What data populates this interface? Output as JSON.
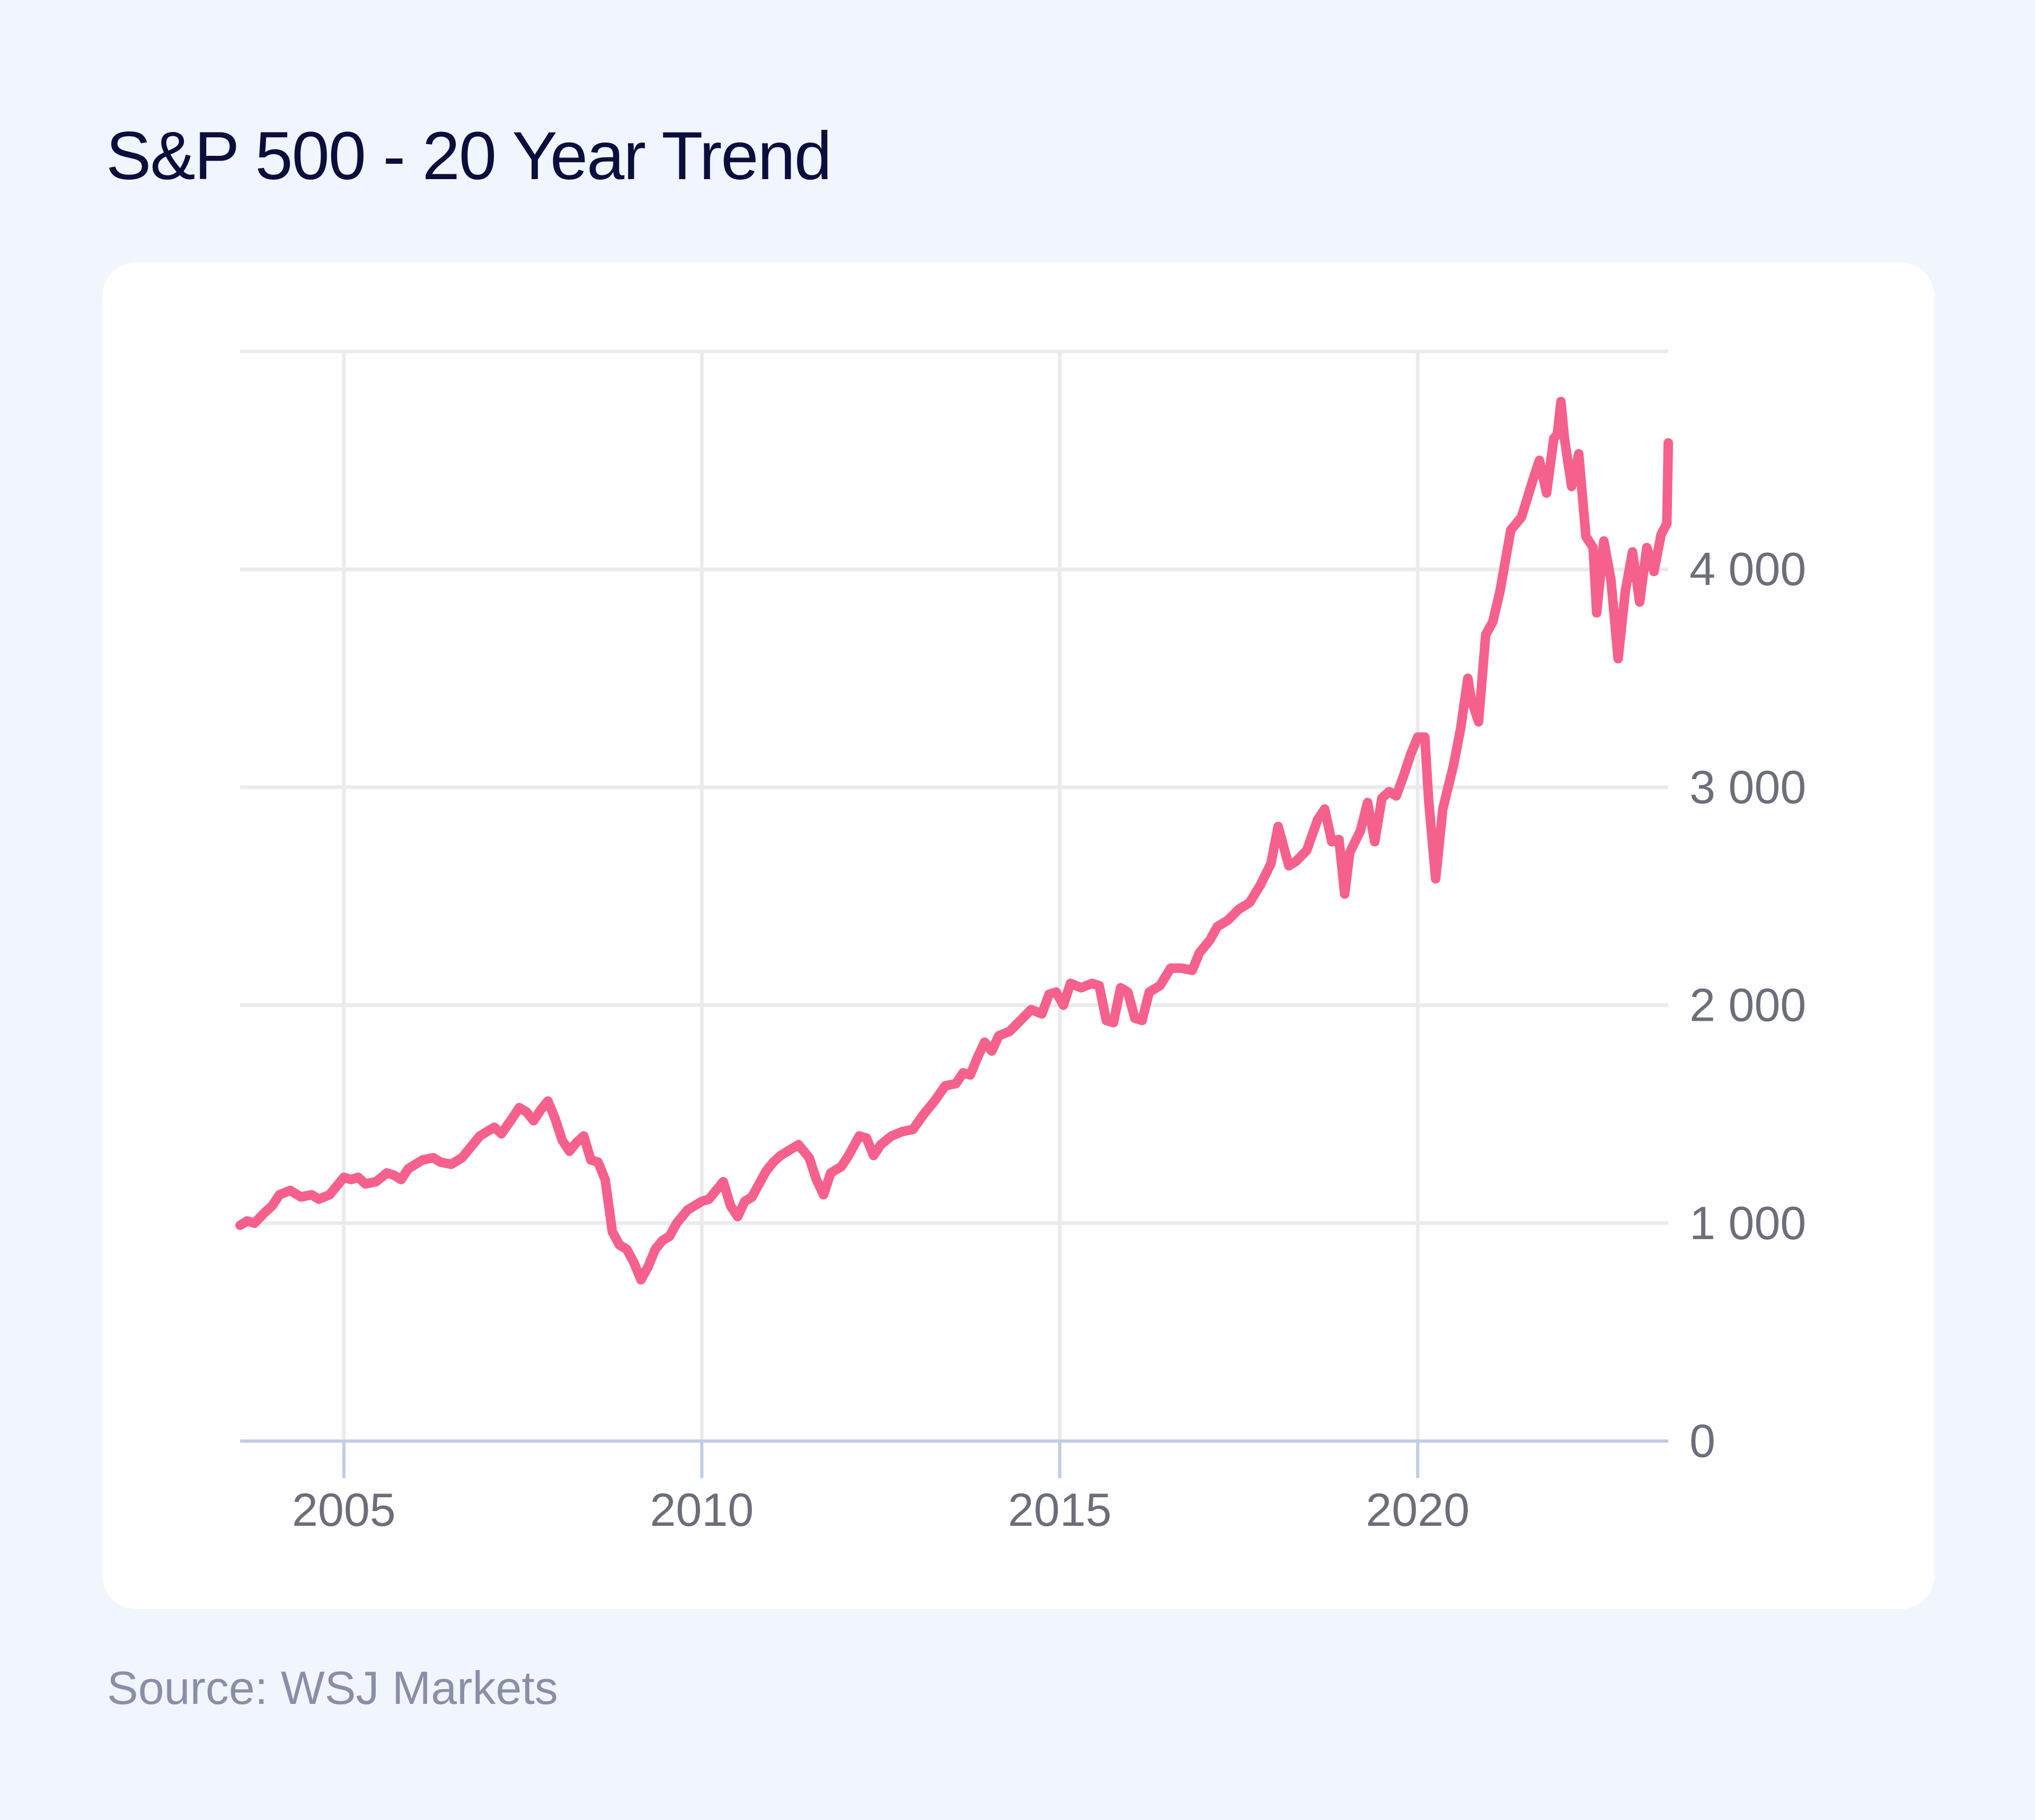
{
  "header": {
    "title": "S&P 500 - 20 Year Trend"
  },
  "footer": {
    "source": "Source: WSJ Markets"
  },
  "colors": {
    "page_background": "#f1f5fe",
    "card_background": "#ffffff",
    "line": "#f5618c",
    "gridline": "#ebebeb",
    "baseline": "#c0cde3",
    "title_text": "#0b0e3c",
    "source_text": "#8a8fa8",
    "tick_text": "#6c6e7a"
  },
  "chart_data": {
    "type": "line",
    "title": "S&P 500 - 20 Year Trend",
    "xlabel": "",
    "ylabel": "",
    "x_axis": {
      "type": "year",
      "range": [
        2003.55,
        2023.5
      ],
      "ticks": [
        2005,
        2010,
        2015,
        2020
      ],
      "tick_labels": [
        "2005",
        "2010",
        "2015",
        "2020"
      ]
    },
    "y_axis": {
      "position": "right",
      "range": [
        0,
        5000
      ],
      "ticks": [
        0,
        1000,
        2000,
        3000,
        4000
      ],
      "tick_labels": [
        "0",
        "1 000",
        "2 000",
        "3 000",
        "4 000"
      ]
    },
    "grid": {
      "horizontal": true,
      "vertical": true
    },
    "legend": "none",
    "series": [
      {
        "color": "#f5618c",
        "points": [
          [
            2003.55,
            990
          ],
          [
            2003.65,
            1010
          ],
          [
            2003.75,
            1000
          ],
          [
            2003.9,
            1050
          ],
          [
            2004.0,
            1080
          ],
          [
            2004.1,
            1130
          ],
          [
            2004.25,
            1150
          ],
          [
            2004.4,
            1120
          ],
          [
            2004.55,
            1130
          ],
          [
            2004.65,
            1110
          ],
          [
            2004.8,
            1130
          ],
          [
            2004.9,
            1170
          ],
          [
            2005.0,
            1210
          ],
          [
            2005.1,
            1200
          ],
          [
            2005.2,
            1210
          ],
          [
            2005.3,
            1180
          ],
          [
            2005.45,
            1190
          ],
          [
            2005.6,
            1230
          ],
          [
            2005.7,
            1220
          ],
          [
            2005.8,
            1200
          ],
          [
            2005.9,
            1250
          ],
          [
            2006.0,
            1270
          ],
          [
            2006.1,
            1290
          ],
          [
            2006.25,
            1300
          ],
          [
            2006.35,
            1280
          ],
          [
            2006.5,
            1270
          ],
          [
            2006.65,
            1300
          ],
          [
            2006.8,
            1360
          ],
          [
            2006.9,
            1400
          ],
          [
            2007.0,
            1420
          ],
          [
            2007.1,
            1440
          ],
          [
            2007.2,
            1410
          ],
          [
            2007.35,
            1480
          ],
          [
            2007.45,
            1530
          ],
          [
            2007.55,
            1510
          ],
          [
            2007.65,
            1470
          ],
          [
            2007.75,
            1520
          ],
          [
            2007.85,
            1560
          ],
          [
            2007.95,
            1480
          ],
          [
            2008.05,
            1380
          ],
          [
            2008.15,
            1330
          ],
          [
            2008.25,
            1370
          ],
          [
            2008.35,
            1400
          ],
          [
            2008.45,
            1290
          ],
          [
            2008.55,
            1280
          ],
          [
            2008.65,
            1200
          ],
          [
            2008.75,
            960
          ],
          [
            2008.85,
            900
          ],
          [
            2008.95,
            880
          ],
          [
            2009.05,
            820
          ],
          [
            2009.15,
            740
          ],
          [
            2009.25,
            800
          ],
          [
            2009.35,
            880
          ],
          [
            2009.45,
            920
          ],
          [
            2009.55,
            940
          ],
          [
            2009.65,
            1000
          ],
          [
            2009.8,
            1060
          ],
          [
            2009.9,
            1080
          ],
          [
            2010.0,
            1100
          ],
          [
            2010.1,
            1110
          ],
          [
            2010.2,
            1150
          ],
          [
            2010.3,
            1190
          ],
          [
            2010.4,
            1080
          ],
          [
            2010.5,
            1030
          ],
          [
            2010.6,
            1100
          ],
          [
            2010.7,
            1120
          ],
          [
            2010.8,
            1180
          ],
          [
            2010.9,
            1240
          ],
          [
            2011.0,
            1280
          ],
          [
            2011.1,
            1310
          ],
          [
            2011.2,
            1330
          ],
          [
            2011.35,
            1360
          ],
          [
            2011.5,
            1300
          ],
          [
            2011.6,
            1200
          ],
          [
            2011.7,
            1130
          ],
          [
            2011.8,
            1230
          ],
          [
            2011.95,
            1260
          ],
          [
            2012.05,
            1310
          ],
          [
            2012.2,
            1400
          ],
          [
            2012.3,
            1390
          ],
          [
            2012.4,
            1310
          ],
          [
            2012.5,
            1360
          ],
          [
            2012.65,
            1400
          ],
          [
            2012.8,
            1420
          ],
          [
            2012.95,
            1430
          ],
          [
            2013.1,
            1500
          ],
          [
            2013.25,
            1560
          ],
          [
            2013.4,
            1630
          ],
          [
            2013.55,
            1640
          ],
          [
            2013.65,
            1690
          ],
          [
            2013.75,
            1680
          ],
          [
            2013.85,
            1760
          ],
          [
            2013.95,
            1830
          ],
          [
            2014.05,
            1790
          ],
          [
            2014.15,
            1860
          ],
          [
            2014.3,
            1880
          ],
          [
            2014.45,
            1930
          ],
          [
            2014.6,
            1980
          ],
          [
            2014.75,
            1960
          ],
          [
            2014.85,
            2050
          ],
          [
            2014.95,
            2060
          ],
          [
            2015.05,
            2000
          ],
          [
            2015.15,
            2100
          ],
          [
            2015.3,
            2080
          ],
          [
            2015.45,
            2100
          ],
          [
            2015.55,
            2090
          ],
          [
            2015.65,
            1930
          ],
          [
            2015.75,
            1920
          ],
          [
            2015.85,
            2080
          ],
          [
            2015.95,
            2060
          ],
          [
            2016.05,
            1940
          ],
          [
            2016.15,
            1930
          ],
          [
            2016.25,
            2060
          ],
          [
            2016.4,
            2090
          ],
          [
            2016.55,
            2170
          ],
          [
            2016.7,
            2170
          ],
          [
            2016.85,
            2160
          ],
          [
            2016.95,
            2240
          ],
          [
            2017.1,
            2300
          ],
          [
            2017.2,
            2360
          ],
          [
            2017.35,
            2390
          ],
          [
            2017.5,
            2440
          ],
          [
            2017.65,
            2470
          ],
          [
            2017.8,
            2550
          ],
          [
            2017.95,
            2650
          ],
          [
            2018.05,
            2820
          ],
          [
            2018.1,
            2760
          ],
          [
            2018.2,
            2640
          ],
          [
            2018.3,
            2660
          ],
          [
            2018.45,
            2710
          ],
          [
            2018.6,
            2850
          ],
          [
            2018.7,
            2900
          ],
          [
            2018.8,
            2750
          ],
          [
            2018.9,
            2760
          ],
          [
            2018.98,
            2510
          ],
          [
            2019.05,
            2700
          ],
          [
            2019.2,
            2800
          ],
          [
            2019.3,
            2930
          ],
          [
            2019.4,
            2750
          ],
          [
            2019.5,
            2950
          ],
          [
            2019.6,
            2980
          ],
          [
            2019.7,
            2960
          ],
          [
            2019.8,
            3050
          ],
          [
            2019.9,
            3150
          ],
          [
            2020.0,
            3230
          ],
          [
            2020.1,
            3230
          ],
          [
            2020.15,
            2950
          ],
          [
            2020.25,
            2580
          ],
          [
            2020.35,
            2900
          ],
          [
            2020.5,
            3100
          ],
          [
            2020.6,
            3270
          ],
          [
            2020.7,
            3500
          ],
          [
            2020.75,
            3400
          ],
          [
            2020.85,
            3300
          ],
          [
            2020.95,
            3700
          ],
          [
            2021.05,
            3760
          ],
          [
            2021.15,
            3900
          ],
          [
            2021.3,
            4180
          ],
          [
            2021.45,
            4240
          ],
          [
            2021.6,
            4400
          ],
          [
            2021.7,
            4500
          ],
          [
            2021.8,
            4350
          ],
          [
            2021.9,
            4600
          ],
          [
            2021.95,
            4620
          ],
          [
            2022.0,
            4770
          ],
          [
            2022.05,
            4600
          ],
          [
            2022.15,
            4380
          ],
          [
            2022.25,
            4530
          ],
          [
            2022.35,
            4150
          ],
          [
            2022.45,
            4100
          ],
          [
            2022.5,
            3800
          ],
          [
            2022.6,
            4130
          ],
          [
            2022.7,
            3950
          ],
          [
            2022.8,
            3590
          ],
          [
            2022.9,
            3900
          ],
          [
            2023.0,
            4080
          ],
          [
            2023.1,
            3850
          ],
          [
            2023.2,
            4100
          ],
          [
            2023.3,
            3990
          ],
          [
            2023.4,
            4160
          ],
          [
            2023.48,
            4210
          ],
          [
            2023.5,
            4580
          ]
        ]
      }
    ]
  }
}
